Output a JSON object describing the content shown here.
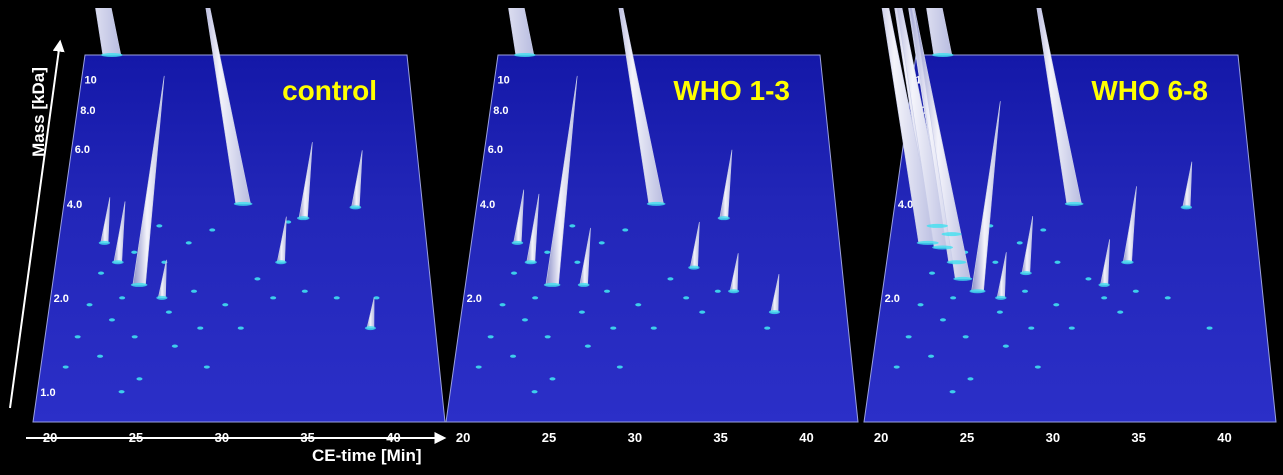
{
  "figure": {
    "xlabel": "CE-time [Min]",
    "ylabel": "Mass [kDa]"
  },
  "colors": {
    "background": "#000000",
    "plane_near": "#2b2fc8",
    "plane_far": "#1418a8",
    "label": "#ffff00",
    "peak": "#e8e8f4",
    "spot": "#40e0f0"
  },
  "chart_data": [
    {
      "type": "scatter",
      "title": "control",
      "x_ticks": [
        "20",
        "25",
        "30",
        "35",
        "40"
      ],
      "y_ticks": [
        "1.0",
        "2.0",
        "4.0",
        "6.0",
        "8.0",
        "10"
      ],
      "x_range": [
        19,
        43
      ],
      "y_log": true,
      "y_range": [
        0.8,
        12
      ],
      "peaks": [
        {
          "x": 21.0,
          "y": 12.0,
          "h": 1.0
        },
        {
          "x": 31.0,
          "y": 4.0,
          "h": 0.72
        },
        {
          "x": 24.5,
          "y": 2.2,
          "h": 0.55
        },
        {
          "x": 35.0,
          "y": 3.6,
          "h": 0.2
        },
        {
          "x": 38.5,
          "y": 3.9,
          "h": 0.15
        },
        {
          "x": 33.5,
          "y": 2.6,
          "h": 0.12
        },
        {
          "x": 23.0,
          "y": 2.6,
          "h": 0.16
        },
        {
          "x": 22.0,
          "y": 3.0,
          "h": 0.12
        },
        {
          "x": 26.0,
          "y": 2.0,
          "h": 0.1
        },
        {
          "x": 39.0,
          "y": 1.6,
          "h": 0.08
        }
      ],
      "spots": [
        [
          20.5,
          1.2
        ],
        [
          21.0,
          1.5
        ],
        [
          21.5,
          1.9
        ],
        [
          22.0,
          2.4
        ],
        [
          22.5,
          1.3
        ],
        [
          23.0,
          1.7
        ],
        [
          23.5,
          2.0
        ],
        [
          24.0,
          2.8
        ],
        [
          24.5,
          1.5
        ],
        [
          25.0,
          1.1
        ],
        [
          25.5,
          3.4
        ],
        [
          26.0,
          2.6
        ],
        [
          26.5,
          1.8
        ],
        [
          27.0,
          1.4
        ],
        [
          27.5,
          3.0
        ],
        [
          28.0,
          2.1
        ],
        [
          28.5,
          1.6
        ],
        [
          29.0,
          3.3
        ],
        [
          30.0,
          1.9
        ],
        [
          31.0,
          1.6
        ],
        [
          32.0,
          2.3
        ],
        [
          33.0,
          2.0
        ],
        [
          34.0,
          3.5
        ],
        [
          35.0,
          2.1
        ],
        [
          37.0,
          2.0
        ],
        [
          39.5,
          2.0
        ],
        [
          24.0,
          1.0
        ],
        [
          29.0,
          1.2
        ]
      ]
    },
    {
      "type": "scatter",
      "title": "WHO 1-3",
      "x_ticks": [
        "20",
        "25",
        "30",
        "35",
        "40"
      ],
      "y_ticks": [
        "2.0",
        "4.0",
        "6.0",
        "8.0",
        "10"
      ],
      "x_range": [
        19,
        43
      ],
      "y_log": true,
      "y_range": [
        0.8,
        12
      ],
      "peaks": [
        {
          "x": 21.0,
          "y": 12.0,
          "h": 1.0
        },
        {
          "x": 31.0,
          "y": 4.0,
          "h": 0.72
        },
        {
          "x": 24.5,
          "y": 2.2,
          "h": 0.55
        },
        {
          "x": 35.5,
          "y": 3.6,
          "h": 0.18
        },
        {
          "x": 38.5,
          "y": 1.8,
          "h": 0.1
        },
        {
          "x": 33.5,
          "y": 2.5,
          "h": 0.12
        },
        {
          "x": 23.0,
          "y": 2.6,
          "h": 0.18
        },
        {
          "x": 22.0,
          "y": 3.0,
          "h": 0.14
        },
        {
          "x": 26.5,
          "y": 2.2,
          "h": 0.15
        },
        {
          "x": 36.0,
          "y": 2.1,
          "h": 0.1
        }
      ],
      "spots": [
        [
          20.5,
          1.2
        ],
        [
          21.0,
          1.5
        ],
        [
          21.5,
          1.9
        ],
        [
          22.0,
          2.4
        ],
        [
          22.5,
          1.3
        ],
        [
          23.0,
          1.7
        ],
        [
          23.5,
          2.0
        ],
        [
          24.0,
          2.8
        ],
        [
          24.5,
          1.5
        ],
        [
          25.0,
          1.1
        ],
        [
          25.5,
          3.4
        ],
        [
          26.0,
          2.6
        ],
        [
          26.5,
          1.8
        ],
        [
          27.0,
          1.4
        ],
        [
          27.5,
          3.0
        ],
        [
          28.0,
          2.1
        ],
        [
          28.5,
          1.6
        ],
        [
          29.0,
          3.3
        ],
        [
          30.0,
          1.9
        ],
        [
          31.0,
          1.6
        ],
        [
          32.0,
          2.3
        ],
        [
          33.0,
          2.0
        ],
        [
          34.0,
          1.8
        ],
        [
          35.0,
          2.1
        ],
        [
          38.0,
          1.6
        ],
        [
          24.0,
          1.0
        ],
        [
          29.0,
          1.2
        ]
      ]
    },
    {
      "type": "scatter",
      "title": "WHO 6-8",
      "x_ticks": [
        "20",
        "25",
        "30",
        "35",
        "40"
      ],
      "y_ticks": [
        "2.0",
        "4.0",
        "6.0",
        "8.0",
        "10"
      ],
      "x_range": [
        19,
        43
      ],
      "y_log": true,
      "y_range": [
        0.8,
        12
      ],
      "peaks": [
        {
          "x": 21.5,
          "y": 3.0,
          "h": 1.0
        },
        {
          "x": 22.0,
          "y": 3.4,
          "h": 0.95
        },
        {
          "x": 22.5,
          "y": 2.9,
          "h": 0.9
        },
        {
          "x": 23.0,
          "y": 3.2,
          "h": 0.85
        },
        {
          "x": 23.5,
          "y": 2.6,
          "h": 0.8
        },
        {
          "x": 24.0,
          "y": 2.3,
          "h": 0.75
        },
        {
          "x": 21.0,
          "y": 12.0,
          "h": 1.0
        },
        {
          "x": 31.0,
          "y": 4.0,
          "h": 0.72
        },
        {
          "x": 25.0,
          "y": 2.1,
          "h": 0.5
        },
        {
          "x": 34.5,
          "y": 2.6,
          "h": 0.2
        },
        {
          "x": 38.5,
          "y": 3.9,
          "h": 0.12
        },
        {
          "x": 28.0,
          "y": 2.4,
          "h": 0.15
        },
        {
          "x": 26.5,
          "y": 2.0,
          "h": 0.12
        },
        {
          "x": 33.0,
          "y": 2.2,
          "h": 0.12
        }
      ],
      "spots": [
        [
          20.5,
          1.2
        ],
        [
          21.0,
          1.5
        ],
        [
          21.5,
          1.9
        ],
        [
          22.0,
          2.4
        ],
        [
          22.5,
          1.3
        ],
        [
          23.0,
          1.7
        ],
        [
          23.5,
          2.0
        ],
        [
          24.0,
          2.8
        ],
        [
          24.5,
          1.5
        ],
        [
          25.0,
          1.1
        ],
        [
          25.5,
          3.4
        ],
        [
          26.0,
          2.6
        ],
        [
          26.5,
          1.8
        ],
        [
          27.0,
          1.4
        ],
        [
          27.5,
          3.0
        ],
        [
          28.0,
          2.1
        ],
        [
          28.5,
          1.6
        ],
        [
          29.0,
          3.3
        ],
        [
          30.0,
          1.9
        ],
        [
          31.0,
          1.6
        ],
        [
          32.0,
          2.3
        ],
        [
          33.0,
          2.0
        ],
        [
          34.0,
          1.8
        ],
        [
          35.0,
          2.1
        ],
        [
          37.0,
          2.0
        ],
        [
          39.5,
          1.6
        ],
        [
          24.0,
          1.0
        ],
        [
          29.0,
          1.2
        ],
        [
          30.0,
          2.6
        ]
      ]
    }
  ]
}
